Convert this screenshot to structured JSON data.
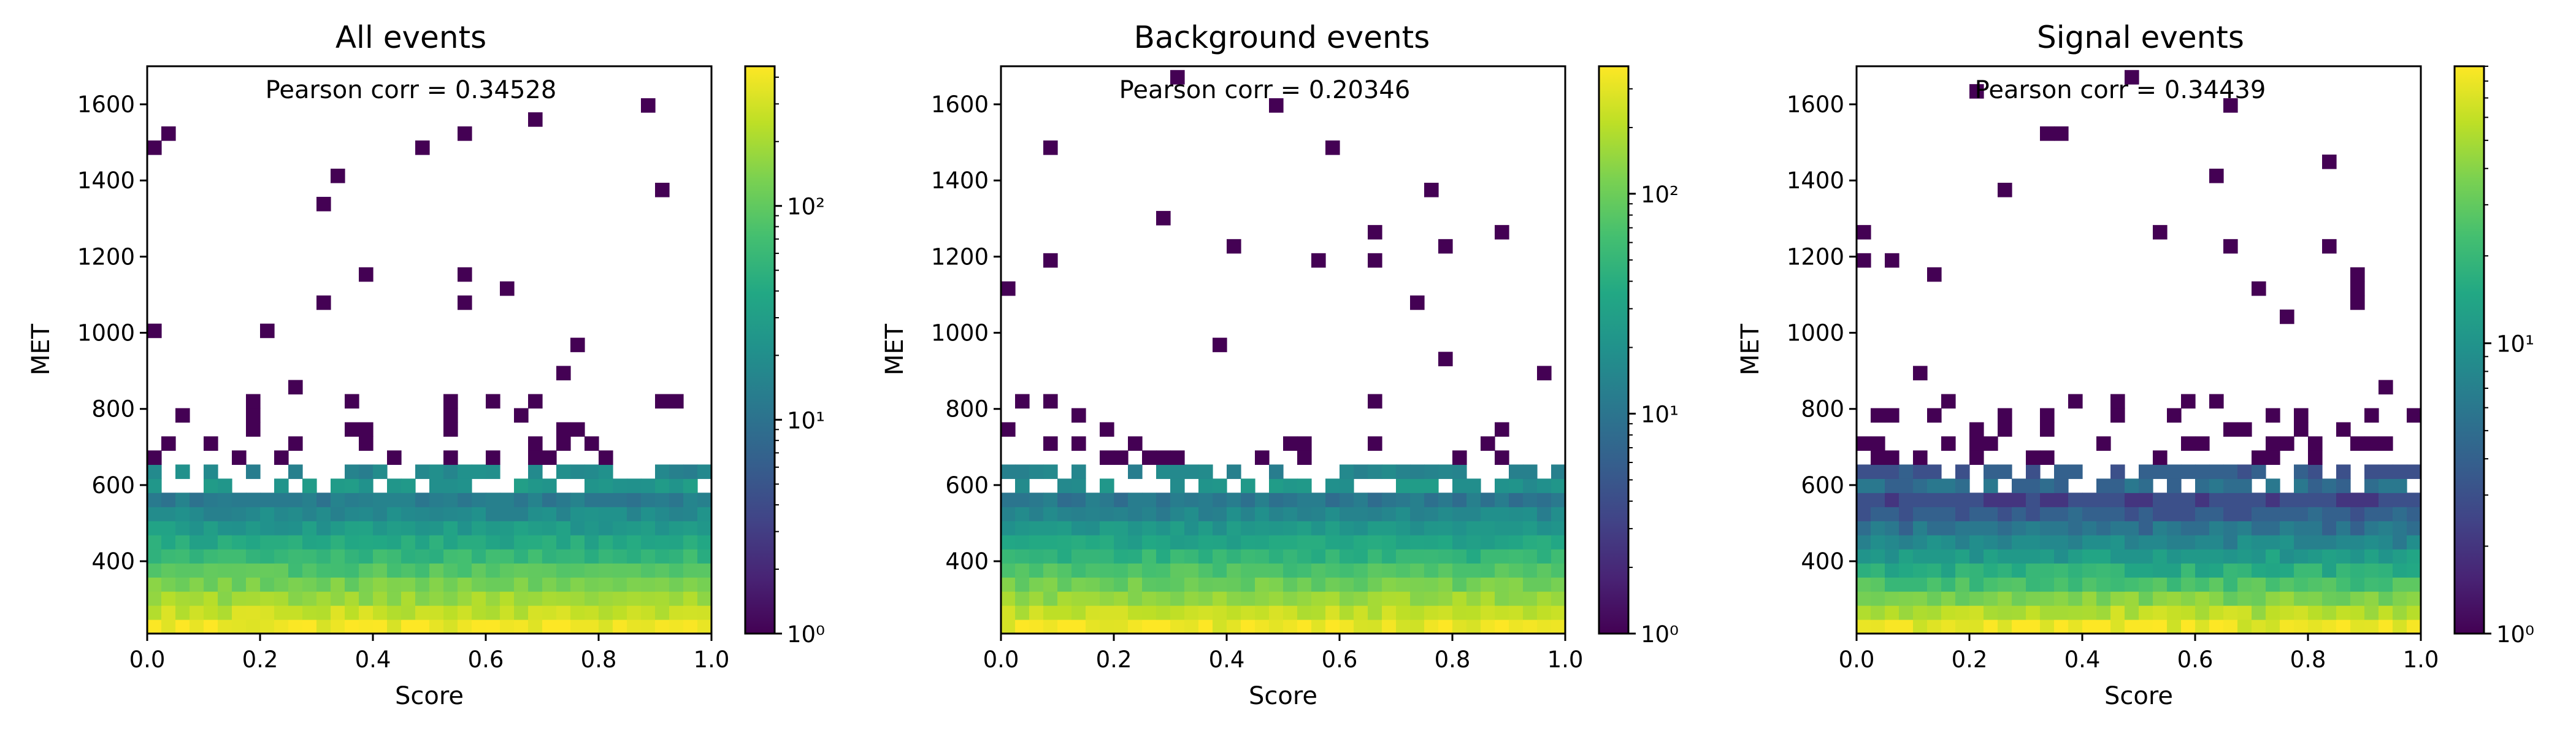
{
  "chart_data": [
    {
      "type": "heatmap",
      "title": "All events",
      "annotation": "Pearson corr = 0.34528",
      "xlabel": "Score",
      "ylabel": "MET",
      "xlim": [
        0.0,
        1.0
      ],
      "ylim": [
        210,
        1700
      ],
      "x_ticks": [
        "0.0",
        "0.2",
        "0.4",
        "0.6",
        "0.8",
        "1.0"
      ],
      "y_ticks": [
        "400",
        "600",
        "800",
        "1000",
        "1200",
        "1400",
        "1600"
      ],
      "colorbar": {
        "scale": "log",
        "min": 1,
        "max": 450,
        "ticks": [
          "10⁰",
          "10¹",
          "10²"
        ]
      },
      "bins": {
        "x_bins": 40,
        "y_start": 210,
        "y_bin_width": 37,
        "peak_count": 400
      }
    },
    {
      "type": "heatmap",
      "title": "Background events",
      "annotation": "Pearson corr = 0.20346",
      "xlabel": "Score",
      "ylabel": "MET",
      "xlim": [
        0.0,
        1.0
      ],
      "ylim": [
        210,
        1700
      ],
      "x_ticks": [
        "0.0",
        "0.2",
        "0.4",
        "0.6",
        "0.8",
        "1.0"
      ],
      "y_ticks": [
        "400",
        "600",
        "800",
        "1000",
        "1200",
        "1400",
        "1600"
      ],
      "colorbar": {
        "scale": "log",
        "min": 1,
        "max": 380,
        "ticks": [
          "10⁰",
          "10¹",
          "10²"
        ]
      },
      "bins": {
        "x_bins": 40,
        "y_start": 210,
        "y_bin_width": 37,
        "peak_count": 330
      }
    },
    {
      "type": "heatmap",
      "title": "Signal events",
      "annotation": "Pearson corr = 0.34439",
      "xlabel": "Score",
      "ylabel": "MET",
      "xlim": [
        0.0,
        1.0
      ],
      "ylim": [
        210,
        1700
      ],
      "x_ticks": [
        "0.0",
        "0.2",
        "0.4",
        "0.6",
        "0.8",
        "1.0"
      ],
      "y_ticks": [
        "400",
        "600",
        "800",
        "1000",
        "1200",
        "1400",
        "1600"
      ],
      "colorbar": {
        "scale": "log",
        "min": 1,
        "max": 90,
        "ticks": [
          "10⁰",
          "10¹"
        ]
      },
      "bins": {
        "x_bins": 40,
        "y_start": 210,
        "y_bin_width": 37,
        "peak_count": 80
      }
    }
  ]
}
